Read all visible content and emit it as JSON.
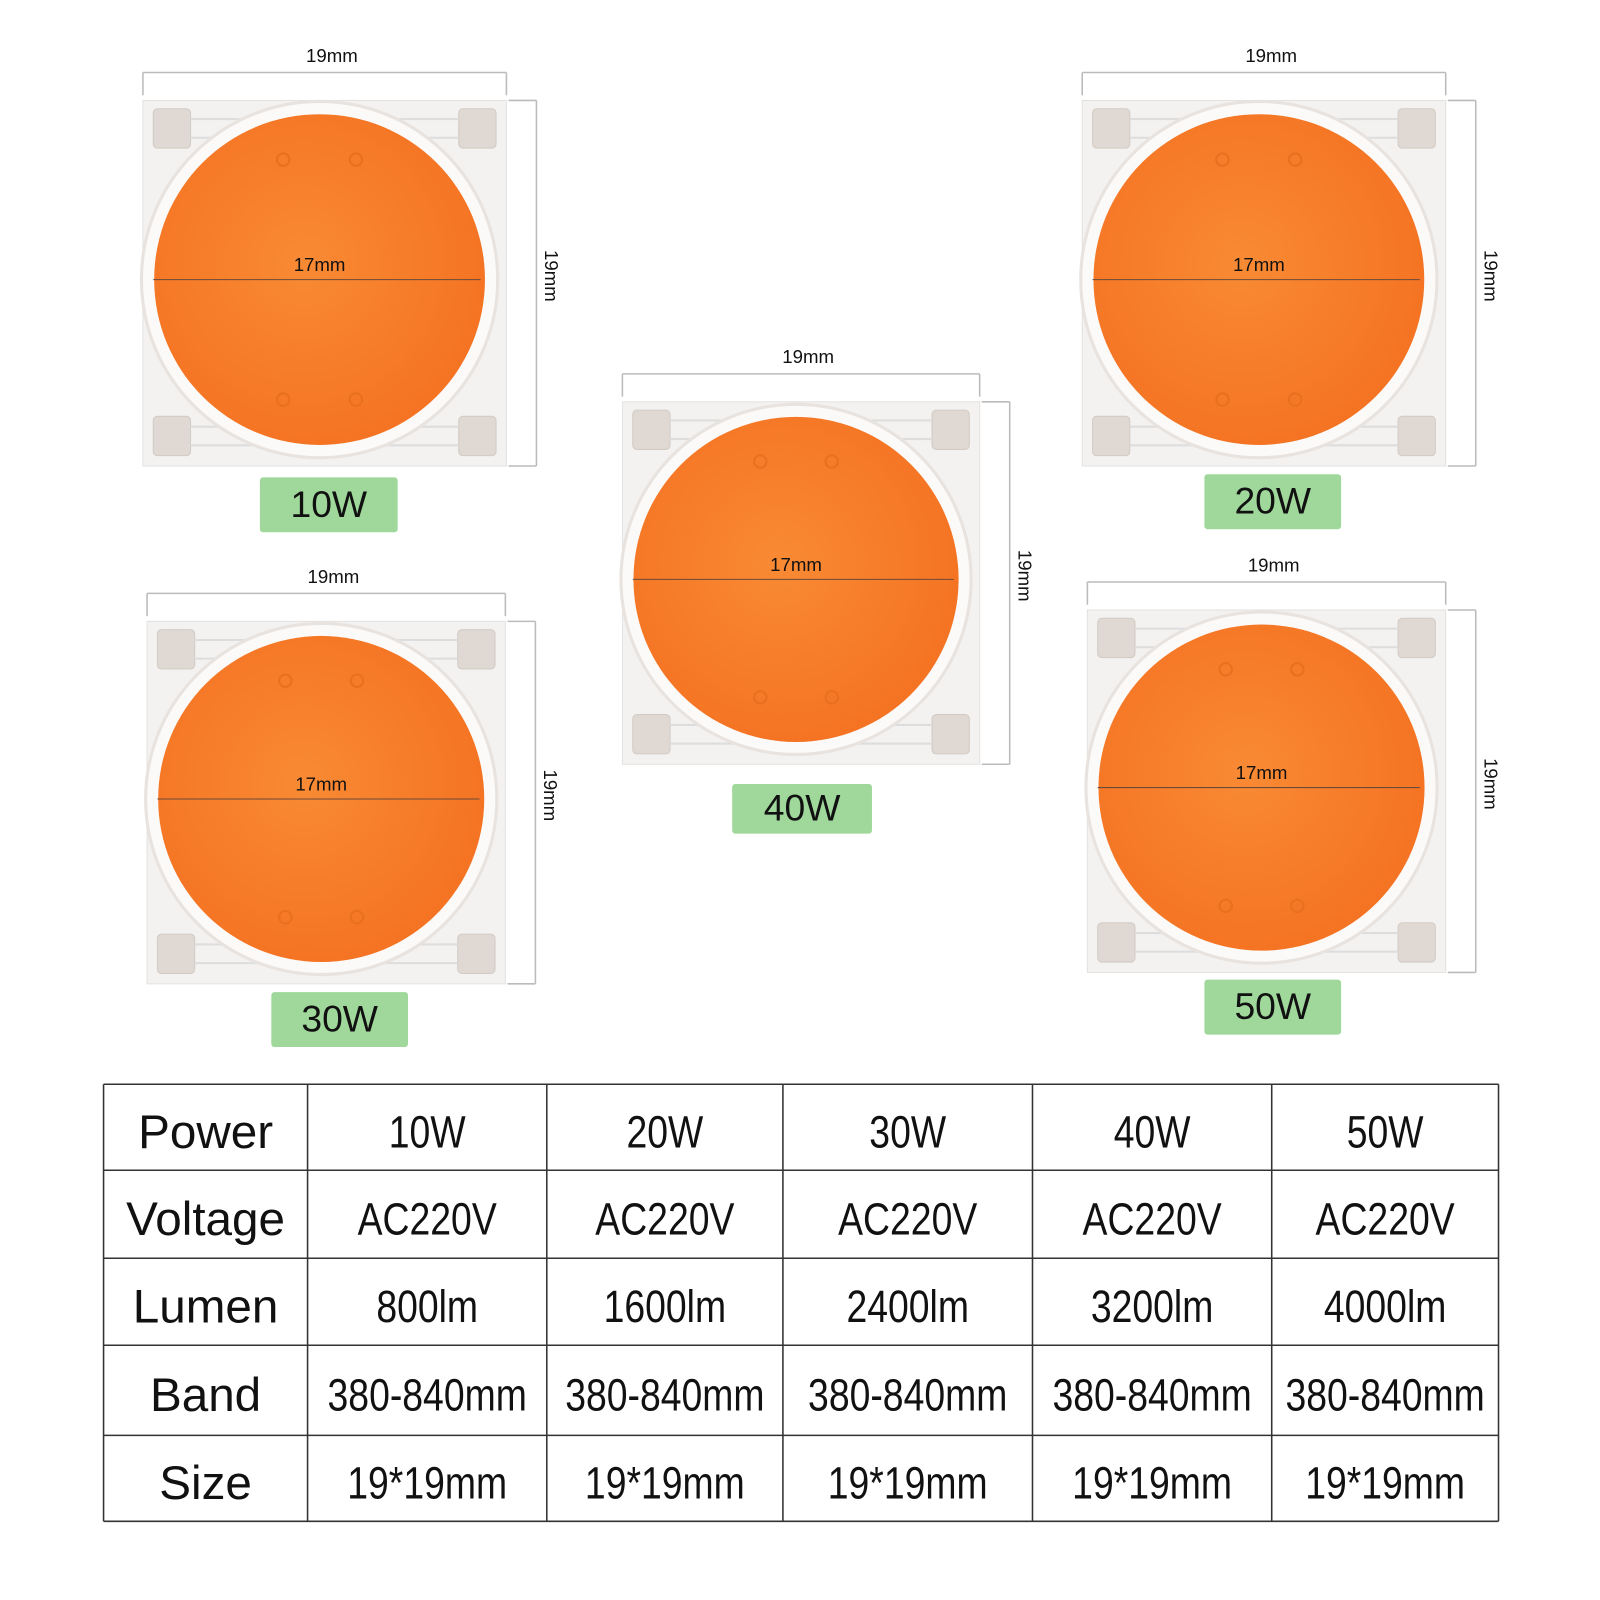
{
  "chips": [
    {
      "power": "10W",
      "width": "19mm",
      "height": "19mm",
      "diameter": "17mm"
    },
    {
      "power": "20W",
      "width": "19mm",
      "height": "19mm",
      "diameter": "17mm"
    },
    {
      "power": "30W",
      "width": "19mm",
      "height": "19mm",
      "diameter": "17mm"
    },
    {
      "power": "40W",
      "width": "19mm",
      "height": "19mm",
      "diameter": "17mm"
    },
    {
      "power": "50W",
      "width": "19mm",
      "height": "19mm",
      "diameter": "17mm"
    }
  ],
  "table": {
    "rows": [
      [
        "Power",
        "10W",
        "20W",
        "30W",
        "40W",
        "50W"
      ],
      [
        "Voltage",
        "AC220V",
        "AC220V",
        "AC220V",
        "AC220V",
        "AC220V"
      ],
      [
        "Lumen",
        "800lm",
        "1600lm",
        "2400lm",
        "3200lm",
        "4000lm"
      ],
      [
        "Band",
        "380-840mm",
        "380-840mm",
        "380-840mm",
        "380-840mm",
        "380-840mm"
      ],
      [
        "Size",
        "19*19mm",
        "19*19mm",
        "19*19mm",
        "19*19mm",
        "19*19mm"
      ]
    ]
  }
}
